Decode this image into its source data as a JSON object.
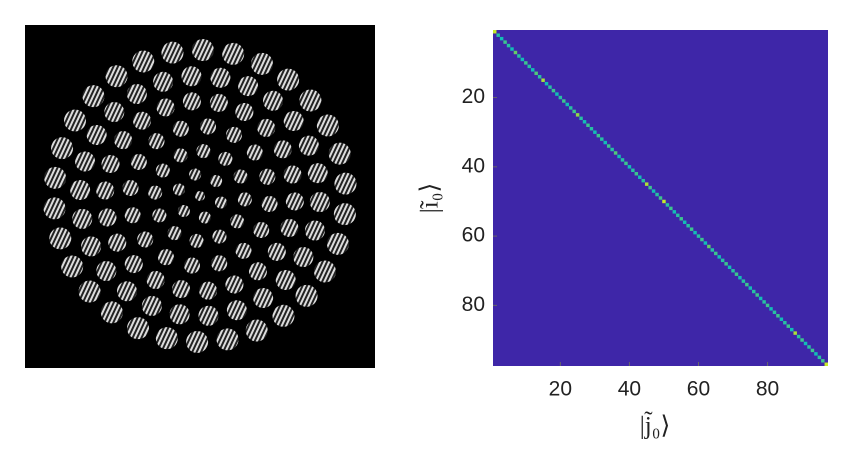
{
  "chart_data": {
    "type": "heatmap",
    "xlabel": "|j̃₀⟩",
    "ylabel": "|ĩ₀⟩",
    "xlim": [
      0.5,
      97.5
    ],
    "ylim": [
      0.5,
      97.5
    ],
    "xticks": [
      20,
      40,
      60,
      80
    ],
    "yticks": [
      20,
      40,
      60,
      80
    ],
    "off_diagonal": 0,
    "diagonal": [
      0.9,
      0.55,
      0.5,
      0.6,
      0.55,
      0.5,
      0.7,
      0.55,
      0.5,
      0.6,
      0.55,
      0.5,
      0.65,
      0.55,
      0.85,
      0.5,
      0.55,
      0.6,
      0.5,
      0.55,
      0.6,
      0.5,
      0.55,
      0.6,
      0.8,
      0.55,
      0.5,
      0.6,
      0.55,
      0.5,
      0.6,
      0.55,
      0.5,
      0.6,
      0.55,
      0.65,
      0.5,
      0.55,
      0.6,
      0.5,
      0.55,
      0.6,
      0.5,
      0.55,
      0.85,
      0.6,
      0.5,
      0.55,
      0.6,
      0.9,
      0.55,
      0.6,
      0.5,
      0.55,
      0.6,
      0.5,
      0.55,
      0.6,
      0.5,
      0.55,
      0.6,
      0.5,
      0.7,
      0.55,
      0.6,
      0.5,
      0.55,
      0.6,
      0.5,
      0.55,
      0.6,
      0.5,
      0.55,
      0.6,
      0.5,
      0.55,
      0.6,
      0.5,
      0.55,
      0.6,
      0.5,
      0.55,
      0.6,
      0.5,
      0.55,
      0.6,
      0.5,
      0.85,
      0.55,
      0.6,
      0.5,
      0.55,
      0.6,
      0.5,
      0.55,
      0.6,
      0.9
    ],
    "colormap": [
      "#3e26a8",
      "#2d8dfd",
      "#13bdb6",
      "#79d151",
      "#f9fb0e"
    ]
  }
}
